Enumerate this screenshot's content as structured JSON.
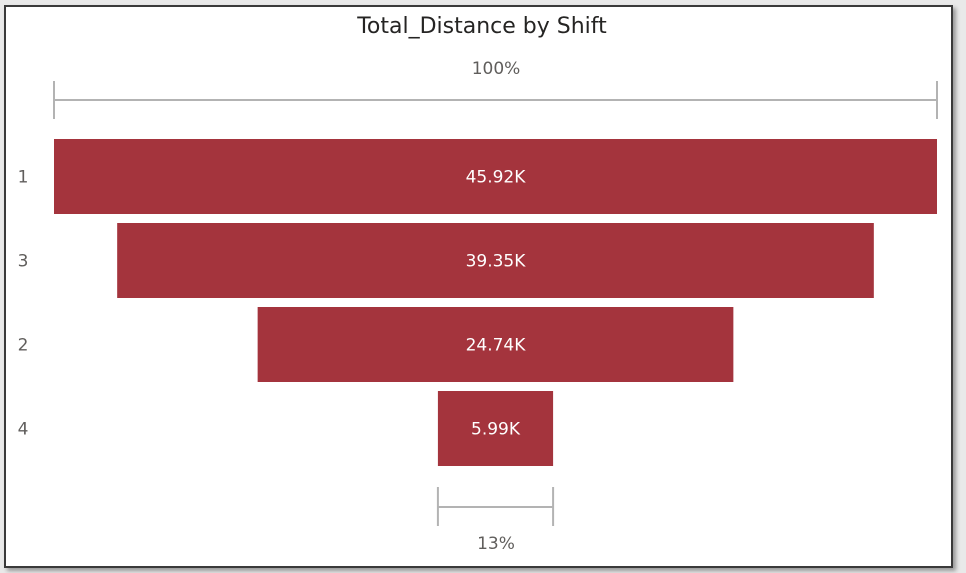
{
  "chart_data": {
    "type": "funnel",
    "title": "Total_Distance by Shift",
    "categories": [
      "1",
      "3",
      "2",
      "4"
    ],
    "values": [
      45920,
      39350,
      24740,
      5990
    ],
    "value_labels": [
      "45.92K",
      "39.35K",
      "24.74K",
      "5.99K"
    ],
    "top_percent_label": "100%",
    "bottom_percent_label": "13%",
    "bar_color": "#a4343d"
  }
}
